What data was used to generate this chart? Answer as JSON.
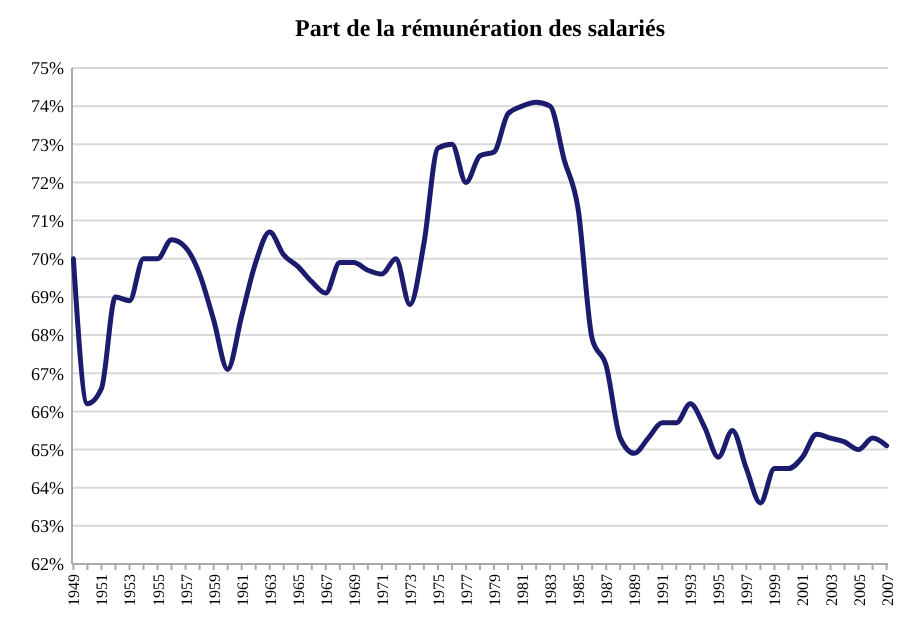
{
  "chart_data": {
    "type": "line",
    "title": "Part de la rémunération des salariés",
    "categories": [
      "1949",
      null,
      "1951",
      null,
      "1953",
      null,
      "1955",
      null,
      "1957",
      null,
      "1959",
      null,
      "1961",
      null,
      "1963",
      null,
      "1965",
      null,
      "1967",
      null,
      "1969",
      null,
      "1971",
      null,
      "1973",
      null,
      "1975",
      null,
      "1977",
      null,
      "1979",
      null,
      "1981",
      null,
      "1983",
      null,
      "1985",
      null,
      "1987",
      null,
      "1989",
      null,
      "1991",
      null,
      "1993",
      null,
      "1995",
      null,
      "1997",
      null,
      "1999",
      null,
      "2001",
      null,
      "2003",
      null,
      "2005",
      null,
      "2007"
    ],
    "series": [
      {
        "color": "#1c1c6e",
        "values": [
          70.0,
          66.2,
          66.6,
          69.0,
          68.9,
          70.0,
          70.0,
          70.5,
          70.3,
          69.6,
          68.4,
          67.1,
          68.5,
          69.9,
          70.7,
          70.1,
          69.8,
          69.4,
          69.1,
          69.9,
          69.9,
          69.7,
          69.6,
          70.0,
          68.8,
          70.4,
          72.9,
          73.0,
          72.0,
          72.7,
          72.8,
          73.8,
          74.0,
          74.1,
          74.0,
          72.6,
          71.3,
          67.9,
          67.2,
          65.3,
          64.9,
          65.3,
          65.7,
          65.7,
          66.2,
          65.6,
          64.8,
          65.5,
          64.5,
          63.6,
          64.5,
          64.5,
          64.8,
          65.4,
          65.3,
          65.2,
          65.0,
          65.3,
          65.1
        ]
      }
    ],
    "ylim": [
      62,
      75
    ],
    "yticks": [
      {
        "value": 62,
        "label": "62%"
      },
      {
        "value": 63,
        "label": "63%"
      },
      {
        "value": 64,
        "label": "64%"
      },
      {
        "value": 65,
        "label": "65%"
      },
      {
        "value": 66,
        "label": "66%"
      },
      {
        "value": 67,
        "label": "67%"
      },
      {
        "value": 68,
        "label": "68%"
      },
      {
        "value": 69,
        "label": "69%"
      },
      {
        "value": 70,
        "label": "70%"
      },
      {
        "value": 71,
        "label": "71%"
      },
      {
        "value": 72,
        "label": "72%"
      },
      {
        "value": 73,
        "label": "73%"
      },
      {
        "value": 74,
        "label": "74%"
      },
      {
        "value": 75,
        "label": "75%"
      }
    ],
    "grid": "y",
    "marker": "none",
    "line_style": "solid"
  }
}
